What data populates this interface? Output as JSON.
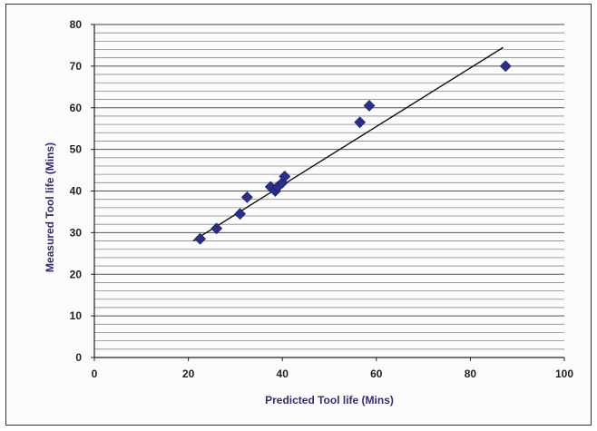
{
  "chart_data": {
    "type": "scatter",
    "title": "",
    "xlabel": "Predicted Tool life (Mins)",
    "ylabel": "Measured Tool life (Mins)",
    "xlim": [
      0,
      100
    ],
    "ylim": [
      0,
      80
    ],
    "x_ticks": [
      "0",
      "20",
      "40",
      "60",
      "80",
      "100"
    ],
    "y_ticks": [
      "0",
      "10",
      "20",
      "30",
      "40",
      "50",
      "60",
      "70",
      "80"
    ],
    "grid": "dense horizontal lines",
    "legend": "none",
    "marker": "diamond",
    "marker_color": "#2b2f8a",
    "series": [
      {
        "points": [
          {
            "x": 22.5,
            "y": 28.5
          },
          {
            "x": 26,
            "y": 31
          },
          {
            "x": 31,
            "y": 34.5
          },
          {
            "x": 32.5,
            "y": 38.5
          },
          {
            "x": 37.5,
            "y": 41
          },
          {
            "x": 38.5,
            "y": 40
          },
          {
            "x": 39,
            "y": 41
          },
          {
            "x": 40,
            "y": 42
          },
          {
            "x": 40.5,
            "y": 43.5
          },
          {
            "x": 56.5,
            "y": 56.5
          },
          {
            "x": 58.5,
            "y": 60.5
          },
          {
            "x": 87.5,
            "y": 70
          }
        ]
      }
    ],
    "trendline": {
      "x": [
        21,
        87
      ],
      "y": [
        28,
        74.5
      ],
      "color": "#111111"
    }
  }
}
